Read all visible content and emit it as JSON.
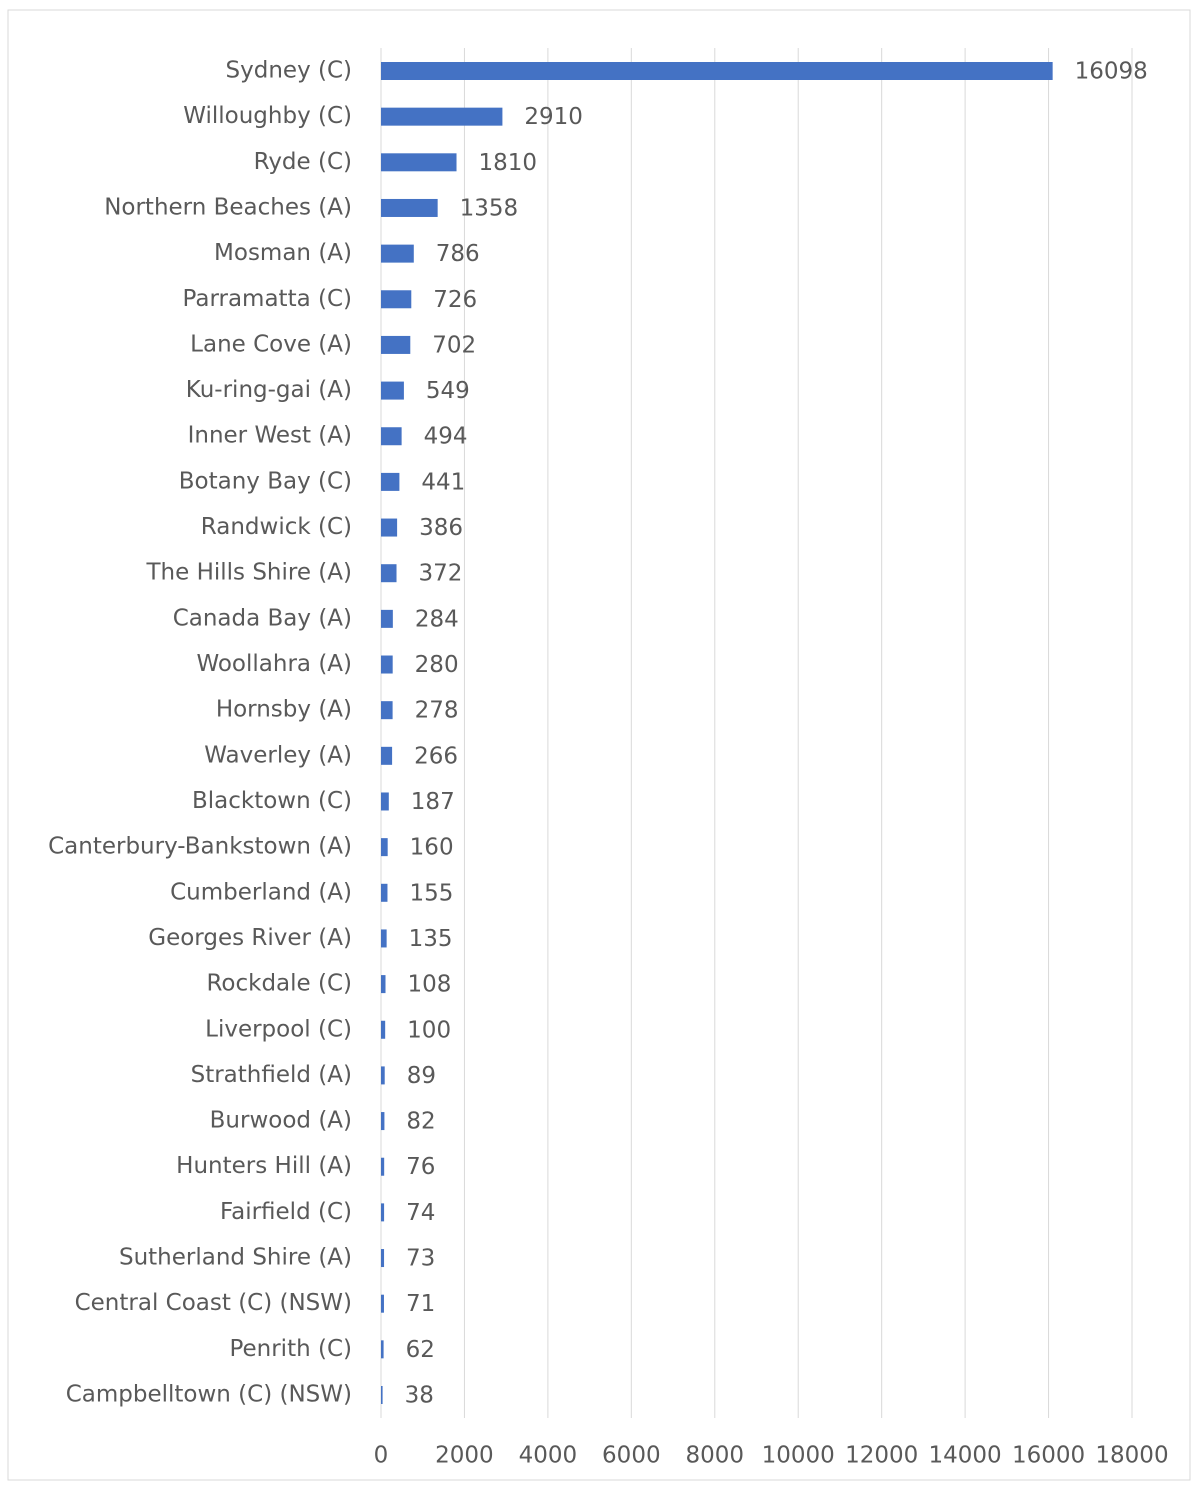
{
  "chart_data": {
    "type": "bar",
    "orientation": "horizontal",
    "categories": [
      "Sydney (C)",
      "Willoughby (C)",
      "Ryde (C)",
      "Northern Beaches (A)",
      "Mosman (A)",
      "Parramatta (C)",
      "Lane Cove (A)",
      "Ku-ring-gai (A)",
      "Inner West (A)",
      "Botany Bay (C)",
      "Randwick (C)",
      "The Hills Shire (A)",
      "Canada Bay (A)",
      "Woollahra (A)",
      "Hornsby (A)",
      "Waverley (A)",
      "Blacktown (C)",
      "Canterbury-Bankstown (A)",
      "Cumberland (A)",
      "Georges River (A)",
      "Rockdale (C)",
      "Liverpool (C)",
      "Strathfield (A)",
      "Burwood (A)",
      "Hunters Hill (A)",
      "Fairfield (C)",
      "Sutherland Shire (A)",
      "Central Coast (C) (NSW)",
      "Penrith (C)",
      "Campbelltown (C) (NSW)"
    ],
    "values": [
      16098,
      2910,
      1810,
      1358,
      786,
      726,
      702,
      549,
      494,
      441,
      386,
      372,
      284,
      280,
      278,
      266,
      187,
      160,
      155,
      135,
      108,
      100,
      89,
      82,
      76,
      74,
      73,
      71,
      62,
      38
    ],
    "color": "#4472c4",
    "xlim": [
      0,
      18000
    ],
    "xticks": [
      0,
      2000,
      4000,
      6000,
      8000,
      10000,
      12000,
      14000,
      16000,
      18000
    ],
    "grid": true
  }
}
